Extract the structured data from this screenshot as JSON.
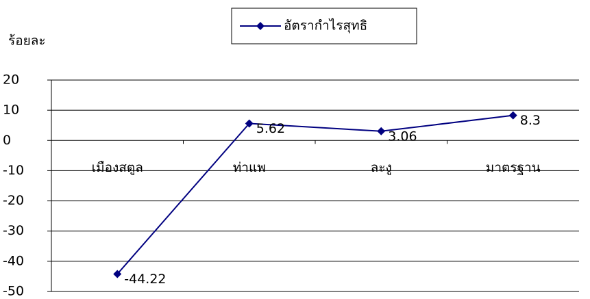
{
  "chart_data": {
    "type": "line",
    "ylabel": "ร้อยละ",
    "categories": [
      "เมืองสตูล",
      "ท่าแพ",
      "ละงู",
      "มาตรฐาน"
    ],
    "series": [
      {
        "name": "อัตรากำไรสุทธิ",
        "color": "#000080",
        "values": [
          -44.22,
          5.62,
          3.06,
          8.3
        ]
      }
    ],
    "ylim": [
      -50,
      20
    ],
    "yticks": [
      -50,
      -40,
      -30,
      -20,
      -10,
      0,
      10,
      20
    ],
    "grid": true,
    "legend": "top"
  }
}
